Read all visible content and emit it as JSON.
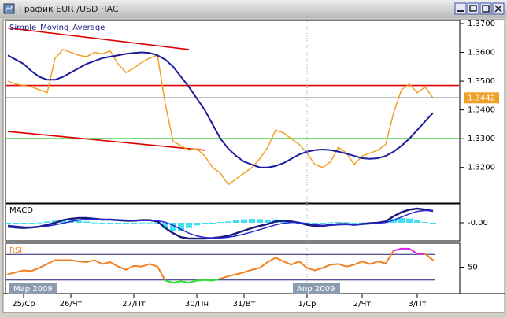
{
  "window": {
    "title": "График EUR /USD ЧАС"
  },
  "chart_data": [
    {
      "type": "price",
      "label": "Simple_Moving_Average",
      "categories": [
        null,
        null,
        "25/Ср",
        null,
        null,
        null,
        null,
        null,
        "26/Чт",
        null,
        null,
        null,
        null,
        null,
        null,
        null,
        "27/Пт",
        null,
        null,
        null,
        null,
        null,
        null,
        null,
        "30/Пн",
        null,
        null,
        null,
        null,
        null,
        "31/Вт",
        null,
        null,
        null,
        null,
        null,
        null,
        null,
        "1/Ср",
        null,
        null,
        null,
        null,
        null,
        null,
        "2/Чт",
        null,
        null,
        null,
        null,
        null,
        null,
        "3/Пт",
        null,
        null
      ],
      "series": [
        {
          "color": "#f0a028",
          "values": [
            1.35,
            1.349,
            1.3485,
            1.348,
            1.347,
            1.346,
            1.358,
            1.361,
            1.36,
            1.359,
            1.3585,
            1.36,
            1.3595,
            1.3605,
            1.356,
            1.353,
            1.3545,
            1.3565,
            1.358,
            1.359,
            1.342,
            1.329,
            1.3275,
            1.326,
            1.3265,
            1.324,
            1.32,
            1.318,
            1.314,
            1.316,
            1.318,
            1.32,
            1.323,
            1.327,
            1.333,
            1.332,
            1.33,
            1.328,
            1.325,
            1.321,
            1.32,
            1.322,
            1.327,
            1.325,
            1.321,
            1.324,
            1.325,
            1.326,
            1.328,
            1.339,
            1.347,
            1.349,
            1.346,
            1.348,
            1.3442
          ]
        },
        {
          "color": "#1c1c9c",
          "values": [
            1.359,
            1.3575,
            1.356,
            1.3535,
            1.3515,
            1.3505,
            1.3505,
            1.3515,
            1.353,
            1.3545,
            1.356,
            1.357,
            1.358,
            1.3585,
            1.359,
            1.3595,
            1.3598,
            1.36,
            1.3598,
            1.359,
            1.3575,
            1.355,
            1.3515,
            1.348,
            1.344,
            1.34,
            1.335,
            1.33,
            1.3265,
            1.324,
            1.322,
            1.321,
            1.32,
            1.32,
            1.3205,
            1.3215,
            1.323,
            1.3245,
            1.3255,
            1.326,
            1.3262,
            1.326,
            1.3255,
            1.3248,
            1.324,
            1.3232,
            1.323,
            1.3232,
            1.324,
            1.3255,
            1.3275,
            1.33,
            1.333,
            1.336,
            1.339
          ]
        }
      ],
      "ylim": [
        1.3076,
        1.3711
      ],
      "yticks": [
        {
          "value": 1.37,
          "label": "1.3700"
        },
        {
          "value": 1.36,
          "label": "1.3600"
        },
        {
          "value": 1.35,
          "label": "1.3500"
        },
        {
          "value": 1.34,
          "label": "1.3400"
        },
        {
          "value": 1.33,
          "label": "1.3300"
        },
        {
          "value": 1.32,
          "label": "1.3200"
        }
      ],
      "hlines": [
        {
          "value": 1.3485,
          "color": "#e00000"
        },
        {
          "value": 1.3442,
          "color": "#000000"
        },
        {
          "value": 1.33,
          "color": "#22cc22"
        }
      ],
      "trendlines": [
        {
          "color": "#e00000",
          "from": {
            "index": 0,
            "value": 1.3685
          },
          "to": {
            "index": 23,
            "value": 1.361
          }
        },
        {
          "color": "#e00000",
          "from": {
            "index": 0,
            "value": 1.3325
          },
          "to": {
            "index": 25,
            "value": 1.326
          }
        }
      ],
      "last_price": {
        "value": 1.3442,
        "label": "1.3442",
        "color": "#f0a028"
      },
      "period_labels": [
        {
          "label": "Мар 2009",
          "category": "25/Ср"
        },
        {
          "label": "Апр 2009",
          "category": "1/Ср"
        }
      ]
    },
    {
      "type": "macd",
      "label": "MACD",
      "series": [
        {
          "color": "#40e0f0",
          "values": [
            -0.0005,
            -0.0005,
            -0.0004,
            -0.0001,
            0.0001,
            0.0005,
            0.0008,
            0.0012,
            0.001,
            0.0008,
            0.0005,
            0.0001,
            -0.0001,
            0.0,
            -0.0001,
            -0.0002,
            -0.0001,
            0.0001,
            0.0001,
            -0.0003,
            -0.0022,
            -0.003,
            -0.003,
            -0.002,
            -0.001,
            -0.0004,
            0.0,
            0.0003,
            0.0005,
            0.001,
            0.0013,
            0.0015,
            0.0014,
            0.0012,
            0.0013,
            0.001,
            0.0004,
            -0.0001,
            -0.0005,
            -0.0005,
            -0.0002,
            0.0002,
            0.0003,
            0.0002,
            -0.0001,
            0.0001,
            0.0002,
            0.0002,
            0.0004,
            0.0015,
            0.0018,
            0.0016,
            0.0011,
            0.0003,
            -0.0001
          ]
        },
        {
          "color": "#1c1c7c",
          "values": [
            -0.0015,
            -0.0018,
            -0.002,
            -0.0018,
            -0.0015,
            -0.0008,
            0.0,
            0.001,
            0.0015,
            0.0018,
            0.0018,
            0.0015,
            0.0012,
            0.0012,
            0.001,
            0.0008,
            0.0008,
            0.001,
            0.001,
            0.0005,
            -0.002,
            -0.004,
            -0.0055,
            -0.006,
            -0.006,
            -0.006,
            -0.0058,
            -0.0055,
            -0.005,
            -0.004,
            -0.003,
            -0.002,
            -0.0012,
            -0.0005,
            0.0005,
            0.0008,
            0.0005,
            0.0,
            -0.0008,
            -0.0012,
            -0.0012,
            -0.0008,
            -0.0005,
            -0.0005,
            -0.0008,
            -0.0005,
            -0.0002,
            0.0,
            0.0005,
            0.0025,
            0.004,
            0.005,
            0.0054,
            0.005,
            0.0045
          ]
        },
        {
          "color": "#2828d0",
          "values": [
            -0.001,
            -0.0013,
            -0.0016,
            -0.0017,
            -0.0016,
            -0.0013,
            -0.0008,
            -0.0002,
            0.0005,
            0.001,
            0.0013,
            0.0014,
            0.0013,
            0.0012,
            0.0011,
            0.001,
            0.0009,
            0.0009,
            0.0009,
            0.0008,
            0.0002,
            -0.001,
            -0.0025,
            -0.004,
            -0.005,
            -0.0056,
            -0.0058,
            -0.0058,
            -0.0055,
            -0.005,
            -0.0043,
            -0.0035,
            -0.0026,
            -0.0017,
            -0.0008,
            -0.0002,
            0.0001,
            0.0001,
            -0.0003,
            -0.0007,
            -0.001,
            -0.001,
            -0.0008,
            -0.0007,
            -0.0007,
            -0.0006,
            -0.0004,
            -0.0002,
            0.0001,
            0.001,
            0.0022,
            0.0034,
            0.0043,
            0.0047,
            0.0046
          ]
        }
      ],
      "ylim": [
        -0.0069,
        0.0072
      ],
      "yticks": [
        {
          "value": 0,
          "label": "-0.00"
        }
      ]
    },
    {
      "type": "rsi",
      "label": "RSI",
      "color": "#f08020",
      "high_color": "#e020e0",
      "low_color": "#30e030",
      "values": [
        39,
        42,
        45,
        44,
        49,
        55,
        61,
        61,
        61,
        59,
        58,
        61,
        55,
        58,
        51,
        46,
        52,
        51,
        55,
        51,
        29,
        26,
        28,
        26,
        29,
        30,
        29,
        32,
        36,
        39,
        42,
        46,
        49,
        58,
        65,
        59,
        54,
        59,
        49,
        45,
        49,
        54,
        55,
        51,
        54,
        59,
        55,
        59,
        56,
        76,
        79,
        79,
        71,
        71,
        61
      ],
      "ylim": [
        8.75,
        87.5
      ],
      "yticks": [
        50
      ],
      "hlines": [
        {
          "value": 70,
          "color": "#1c1c7c"
        },
        {
          "value": 30,
          "color": "#1c1c7c"
        }
      ]
    }
  ]
}
